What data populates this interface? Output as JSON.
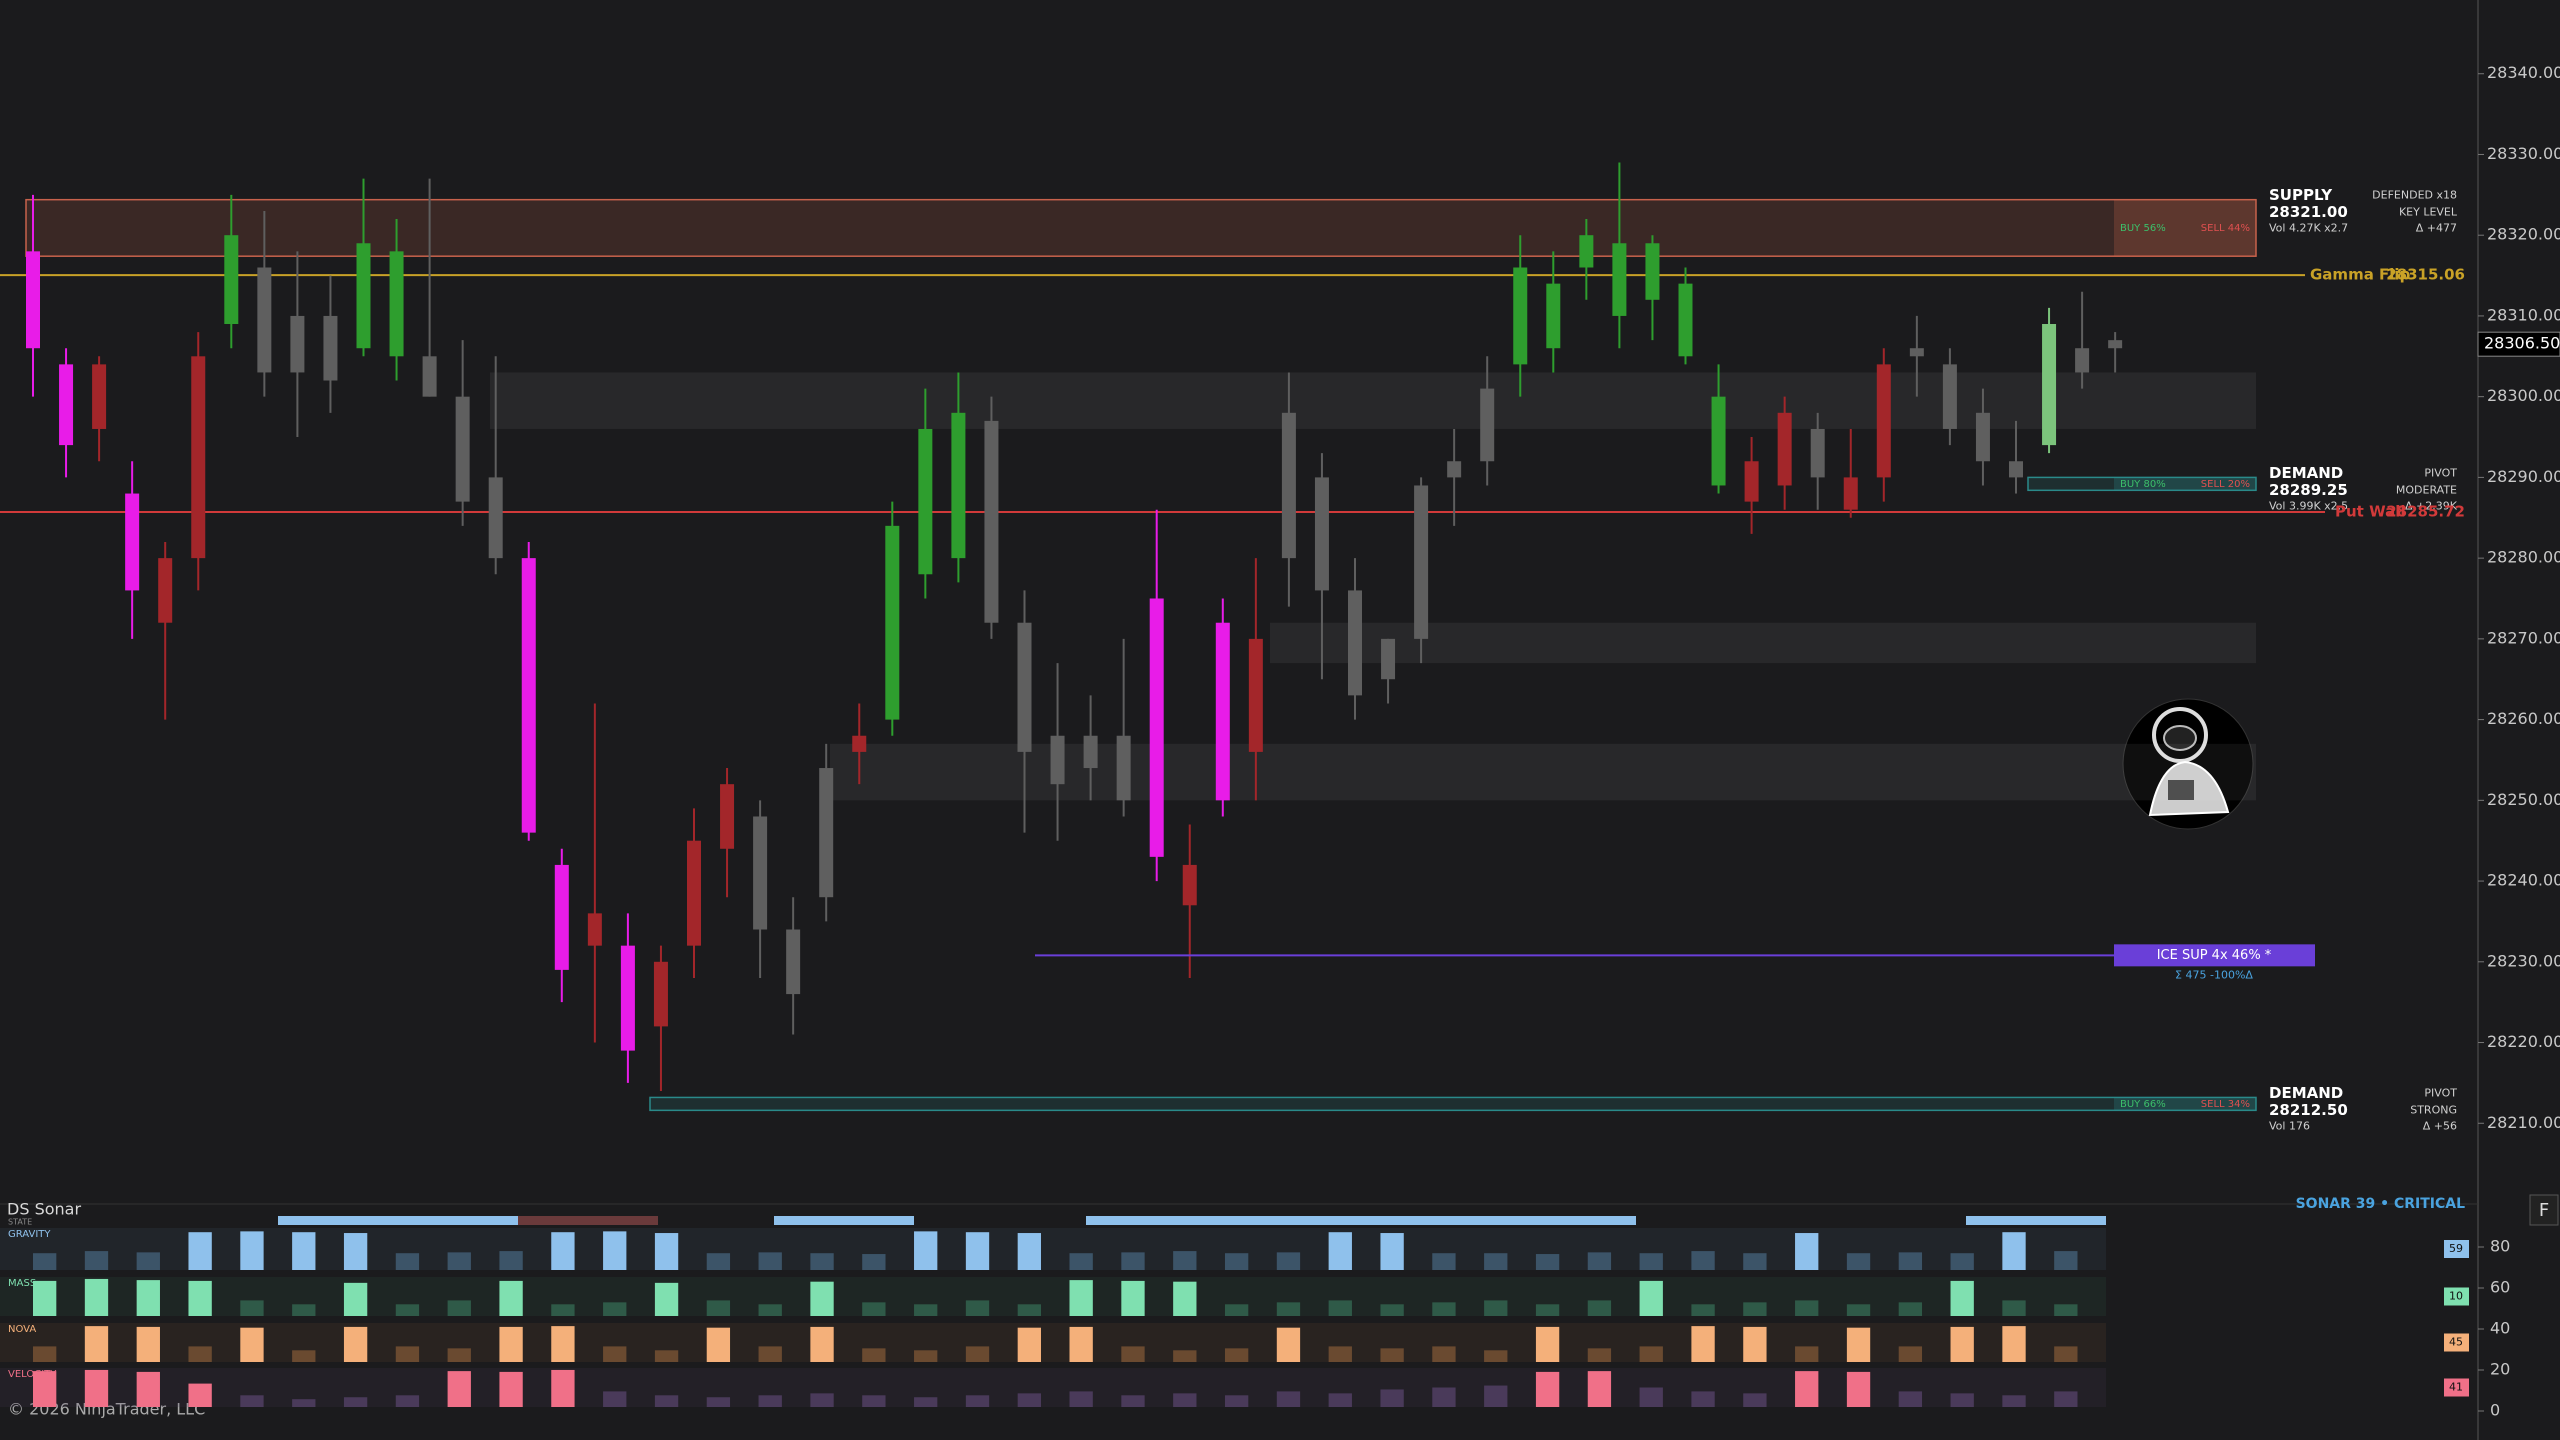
{
  "chart_data": {
    "type": "candlestick",
    "ylim": [
      28200,
      28350
    ],
    "yticks": [
      {
        "value": 28210,
        "label": "28210.00"
      },
      {
        "value": 28220,
        "label": "28220.00"
      },
      {
        "value": 28230,
        "label": "28230.00"
      },
      {
        "value": 28240,
        "label": "28240.00"
      },
      {
        "value": 28250,
        "label": "28250.00"
      },
      {
        "value": 28260,
        "label": "28260.00"
      },
      {
        "value": 28270,
        "label": "28270.00"
      },
      {
        "value": 28280,
        "label": "28280.00"
      },
      {
        "value": 28290,
        "label": "28290.00"
      },
      {
        "value": 28300,
        "label": "28300.00"
      },
      {
        "value": 28310,
        "label": "28310.00"
      },
      {
        "value": 28320,
        "label": "28320.00"
      },
      {
        "value": 28330,
        "label": "28330.00"
      },
      {
        "value": 28340,
        "label": "28340.00"
      }
    ],
    "candles": {
      "open": [
        28318,
        28304,
        28296,
        28288,
        28272,
        28280,
        28309,
        28316,
        28303,
        28310,
        28306,
        28318,
        28305,
        28300,
        28290,
        28280,
        28242,
        28236,
        28232,
        28222,
        28232,
        28244,
        28248,
        28234,
        28238,
        28256,
        28260,
        28278,
        28280,
        28297,
        28272,
        28252,
        28258,
        28258,
        28275,
        28237,
        28272,
        28256,
        28280,
        28290,
        28276,
        28265,
        28270,
        28290,
        28292,
        28304,
        28306,
        28316,
        28310,
        28319,
        28314,
        28300,
        28287,
        28289,
        28296,
        28286,
        28290,
        28305,
        28304,
        28298,
        28292,
        28294,
        28303,
        28306
      ],
      "high": [
        28325,
        28306,
        28305,
        28292,
        28282,
        28308,
        28325,
        28323,
        28318,
        28315,
        28327,
        28322,
        28327,
        28307,
        28305,
        28282,
        28244,
        28262,
        28236,
        28232,
        28249,
        28254,
        28250,
        28238,
        28257,
        28262,
        28287,
        28301,
        28303,
        28300,
        28276,
        28267,
        28263,
        28270,
        28286,
        28247,
        28275,
        28280,
        28303,
        28293,
        28280,
        28270,
        28290,
        28296,
        28305,
        28320,
        28318,
        28322,
        28329,
        28320,
        28316,
        28304,
        28295,
        28300,
        28298,
        28296,
        28306,
        28310,
        28306,
        28301,
        28297,
        28311,
        28313,
        28308
      ],
      "low": [
        28300,
        28290,
        28292,
        28270,
        28260,
        28276,
        28306,
        28300,
        28295,
        28298,
        28305,
        28302,
        28300,
        28284,
        28278,
        28245,
        28225,
        28220,
        28215,
        28214,
        28228,
        28238,
        28228,
        28221,
        28235,
        28252,
        28258,
        28275,
        28277,
        28270,
        28246,
        28245,
        28250,
        28248,
        28240,
        28228,
        28248,
        28250,
        28274,
        28265,
        28260,
        28262,
        28267,
        28284,
        28289,
        28300,
        28303,
        28312,
        28306,
        28307,
        28304,
        28288,
        28283,
        28286,
        28286,
        28285,
        28287,
        28300,
        28294,
        28289,
        28288,
        28293,
        28301,
        28303
      ],
      "close": [
        28306,
        28294,
        28304,
        28276,
        28280,
        28305,
        28320,
        28303,
        28310,
        28302,
        28319,
        28305,
        28300,
        28287,
        28280,
        28246,
        28229,
        28232,
        28219,
        28230,
        28245,
        28252,
        28234,
        28226,
        28254,
        28258,
        28284,
        28296,
        28298,
        28272,
        28256,
        28258,
        28254,
        28250,
        28243,
        28242,
        28250,
        28270,
        28298,
        28276,
        28263,
        28270,
        28289,
        28292,
        28301,
        28316,
        28314,
        28320,
        28319,
        28312,
        28305,
        28289,
        28292,
        28298,
        28290,
        28290,
        28304,
        28306,
        28296,
        28292,
        28290,
        28309,
        28306,
        28307
      ],
      "colors": [
        "#e81ce8",
        "#e81ce8",
        "#a3262a",
        "#e81ce8",
        "#a3262a",
        "#a3262a",
        "#2e9e2e",
        "#5f5f5f",
        "#5f5f5f",
        "#5f5f5f",
        "#2e9e2e",
        "#2e9e2e",
        "#5f5f5f",
        "#5f5f5f",
        "#5f5f5f",
        "#e81ce8",
        "#e81ce8",
        "#a3262a",
        "#e81ce8",
        "#a3262a",
        "#a3262a",
        "#a3262a",
        "#5f5f5f",
        "#5f5f5f",
        "#5f5f5f",
        "#a3262a",
        "#2e9e2e",
        "#2e9e2e",
        "#2e9e2e",
        "#5f5f5f",
        "#5f5f5f",
        "#5f5f5f",
        "#5f5f5f",
        "#5f5f5f",
        "#e81ce8",
        "#a3262a",
        "#e81ce8",
        "#a3262a",
        "#5f5f5f",
        "#5f5f5f",
        "#5f5f5f",
        "#5f5f5f",
        "#5f5f5f",
        "#5f5f5f",
        "#5f5f5f",
        "#2e9e2e",
        "#2e9e2e",
        "#2e9e2e",
        "#2e9e2e",
        "#2e9e2e",
        "#2e9e2e",
        "#2e9e2e",
        "#a3262a",
        "#a3262a",
        "#5f5f5f",
        "#a3262a",
        "#a3262a",
        "#5f5f5f",
        "#5f5f5f",
        "#5f5f5f",
        "#5f5f5f",
        "#7cc47c",
        "#5f5f5f",
        "#5f5f5f"
      ]
    },
    "last_price": {
      "value": 28306.5,
      "label": "28306.50"
    },
    "levels": [
      {
        "name": "Gamma Flip",
        "value": 28315.06,
        "color": "#c9a227"
      },
      {
        "name": "Put Wall",
        "value": 28285.72,
        "color": "#d23a3a"
      }
    ],
    "shaded_zones": [
      {
        "low": 28296,
        "high": 28303
      },
      {
        "low": 28267,
        "high": 28272
      },
      {
        "low": 28250,
        "high": 28257
      }
    ],
    "zones": [
      {
        "title": "SUPPLY",
        "price_label": "28321.00",
        "low": 28317.4,
        "high": 28324.4,
        "volume": "Vol 4.27K x2.7",
        "status": "DEFENDED x18",
        "strength": "KEY LEVEL",
        "delta": "Δ +477",
        "buy": "BUY 56%",
        "sell": "SELL 44%",
        "color": "#c8624c"
      },
      {
        "title": "DEMAND",
        "price_label": "28289.25",
        "low": 28288.4,
        "high": 28290,
        "volume": "Vol 3.99K x2.5",
        "status": "PIVOT",
        "strength": "MODERATE",
        "delta": "Δ +2.39K",
        "buy": "BUY 80%",
        "sell": "SELL 20%",
        "color": "#2a8a8a"
      },
      {
        "title": "DEMAND",
        "price_label": "28212.50",
        "low": 28211.6,
        "high": 28213.2,
        "volume": "Vol 176",
        "status": "PIVOT",
        "strength": "STRONG",
        "delta": "Δ +56",
        "buy": "BUY 66%",
        "sell": "SELL 34%",
        "color": "#2a8a8a"
      }
    ],
    "ice": {
      "label": "ICE SUP  4x  46%  *",
      "stats": "Σ 475   -100%Δ",
      "value": 28230.8,
      "color": "#6a3fd8"
    }
  },
  "sonar": {
    "title": "DS Sonar",
    "status": "SONAR 39 • CRITICAL",
    "state_label": "STATE",
    "ylim": [
      0,
      100
    ],
    "yticks": [
      0,
      20,
      40,
      60,
      80
    ],
    "rows": [
      {
        "name": "GRAVITY",
        "color": "#8fc1ec",
        "dim": "#3c5468",
        "badge": 59,
        "values": [
          40,
          45,
          42,
          90,
          92,
          90,
          88,
          40,
          42,
          45,
          90,
          92,
          88,
          40,
          42,
          40,
          38,
          92,
          90,
          88,
          40,
          42,
          45,
          40,
          42,
          90,
          88,
          40,
          40,
          38,
          42,
          40,
          45,
          40,
          88,
          40,
          42,
          40,
          90,
          45
        ]
      },
      {
        "name": "MASS",
        "color": "#7fe0b0",
        "dim": "#2f5a48",
        "badge": 10,
        "values": [
          90,
          95,
          92,
          90,
          40,
          30,
          85,
          30,
          40,
          90,
          30,
          35,
          85,
          40,
          30,
          88,
          35,
          30,
          40,
          30,
          92,
          90,
          88,
          30,
          35,
          40,
          30,
          35,
          40,
          30,
          40,
          90,
          30,
          35,
          40,
          30,
          35,
          90,
          40,
          30
        ]
      },
      {
        "name": "NOVA",
        "color": "#f4b07a",
        "dim": "#6a4a30",
        "badge": 45,
        "values": [
          40,
          92,
          90,
          40,
          88,
          30,
          90,
          40,
          35,
          90,
          92,
          40,
          30,
          88,
          40,
          90,
          35,
          30,
          40,
          88,
          90,
          40,
          30,
          35,
          88,
          40,
          35,
          40,
          30,
          90,
          35,
          40,
          92,
          90,
          40,
          88,
          40,
          90,
          92,
          40
        ]
      },
      {
        "name": "VELOCITY",
        "color": "#f07088",
        "dim": "#4a3a5a",
        "badge": 41,
        "values": [
          92,
          95,
          90,
          60,
          30,
          20,
          25,
          30,
          92,
          90,
          95,
          40,
          30,
          25,
          30,
          35,
          30,
          25,
          30,
          35,
          40,
          30,
          35,
          30,
          40,
          35,
          45,
          50,
          55,
          90,
          92,
          50,
          40,
          35,
          92,
          90,
          40,
          35,
          30,
          40
        ]
      }
    ]
  },
  "footer": {
    "copyright": "© 2026 NinjaTrader, LLC",
    "button": "F"
  }
}
